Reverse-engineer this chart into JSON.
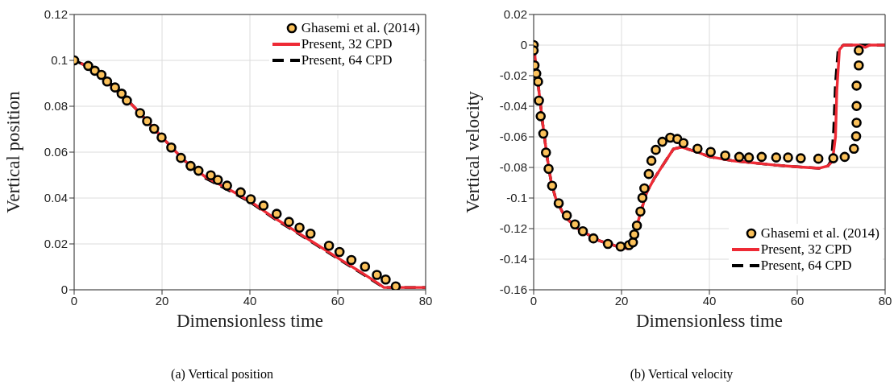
{
  "chart_data": [
    {
      "type": "line",
      "xlabel": "Dimensionless time",
      "ylabel": "Vertical position",
      "annotations": [
        "(a)  Vertical position"
      ],
      "xlim": [
        0,
        80
      ],
      "xticks": [
        0,
        20,
        40,
        60,
        80
      ],
      "ylim": [
        0,
        0.12
      ],
      "yticks": [
        0,
        0.02,
        0.04,
        0.06,
        0.08,
        0.1,
        0.12
      ],
      "grid": true,
      "legend": "top right",
      "series": [
        {
          "name": "Ghasemi et al. (2014)",
          "type": "scatter",
          "marker": "circle",
          "color": "#fbc15a",
          "x": [
            0,
            3.2,
            4.7,
            6.2,
            7.5,
            9.3,
            10.8,
            12.0,
            15.0,
            16.6,
            18.2,
            19.9,
            22.1,
            24.3,
            26.5,
            28.3,
            31.1,
            32.7,
            34.8,
            37.9,
            40.2,
            43.1,
            46.1,
            48.9,
            51.3,
            53.8,
            58.0,
            60.4,
            63.1,
            66.2,
            68.9,
            70.9,
            73.2
          ],
          "values": [
            0.1,
            0.0976,
            0.0955,
            0.0937,
            0.0908,
            0.0882,
            0.0855,
            0.0825,
            0.077,
            0.0735,
            0.0702,
            0.0664,
            0.062,
            0.0575,
            0.054,
            0.0519,
            0.0499,
            0.0479,
            0.0454,
            0.0425,
            0.0395,
            0.0367,
            0.0331,
            0.0296,
            0.0271,
            0.0245,
            0.0192,
            0.0165,
            0.013,
            0.0101,
            0.0065,
            0.0045,
            0.0015
          ]
        },
        {
          "name": "Present, 32 CPD",
          "line_style": "solid",
          "color": "#ee2a35",
          "x": [
            1.5,
            5.4,
            8.4,
            13.5,
            20,
            25,
            28,
            30,
            35,
            40,
            45,
            50,
            55,
            60,
            65,
            69,
            70.5,
            80
          ],
          "values": [
            0.0988,
            0.0948,
            0.089,
            0.08,
            0.0665,
            0.0565,
            0.052,
            0.049,
            0.044,
            0.0387,
            0.032,
            0.026,
            0.02,
            0.0139,
            0.008,
            0.003,
            0.001,
            0.001
          ]
        },
        {
          "name": "Present, 64 CPD",
          "line_style": "dashed",
          "color": "#000000",
          "x": [
            0,
            3,
            6,
            10,
            15,
            20,
            25,
            28,
            30,
            35,
            40,
            45,
            50,
            55,
            60,
            65,
            69,
            70.5,
            80
          ],
          "values": [
            0.1,
            0.0975,
            0.094,
            0.087,
            0.077,
            0.0665,
            0.0565,
            0.0515,
            0.0485,
            0.0435,
            0.0383,
            0.0317,
            0.0257,
            0.0197,
            0.0136,
            0.0077,
            0.0028,
            0.001,
            0.001
          ]
        }
      ]
    },
    {
      "type": "line",
      "xlabel": "Dimensionless time",
      "ylabel": "Vertical velocity",
      "annotations": [
        "(b)  Vertical velocity"
      ],
      "xlim": [
        0,
        80
      ],
      "xticks": [
        0,
        20,
        40,
        60,
        80
      ],
      "ylim": [
        -0.16,
        0.02
      ],
      "yticks": [
        -0.16,
        -0.14,
        -0.12,
        -0.1,
        -0.08,
        -0.06,
        -0.04,
        -0.02,
        0,
        0.02
      ],
      "grid": true,
      "legend": "bottom right",
      "series": [
        {
          "name": "Ghasemi et al. (2014)",
          "type": "scatter",
          "marker": "circle",
          "color": "#fbc15a",
          "x": [
            0,
            0,
            0.2,
            0.6,
            1.0,
            1.2,
            1.6,
            2.2,
            2.8,
            3.4,
            4.2,
            5.7,
            7.55,
            9.4,
            11.2,
            13.6,
            16.9,
            19.8,
            21.7,
            22.6,
            22.9,
            23.5,
            24.3,
            24.75,
            25.2,
            26.2,
            26.8,
            27.8,
            29.3,
            31.1,
            32.7,
            34.1,
            37.3,
            40.3,
            43.6,
            46.8,
            49.0,
            51.9,
            55.2,
            57.9,
            60.8,
            64.8,
            68.2,
            70.8,
            72.9,
            73.4,
            73.5,
            73.5,
            73.5,
            74.0,
            74.0
          ],
          "values": [
            0,
            -0.0035,
            -0.0133,
            -0.0186,
            -0.0239,
            -0.0363,
            -0.0465,
            -0.0579,
            -0.0703,
            -0.0809,
            -0.092,
            -0.1034,
            -0.1114,
            -0.1172,
            -0.1217,
            -0.1264,
            -0.13,
            -0.1317,
            -0.1308,
            -0.129,
            -0.1238,
            -0.118,
            -0.1088,
            -0.0999,
            -0.0937,
            -0.0843,
            -0.0756,
            -0.0685,
            -0.0632,
            -0.0605,
            -0.0614,
            -0.0641,
            -0.0678,
            -0.0699,
            -0.0722,
            -0.0731,
            -0.0735,
            -0.0731,
            -0.0735,
            -0.0735,
            -0.074,
            -0.0743,
            -0.074,
            -0.0731,
            -0.0678,
            -0.0596,
            -0.0508,
            -0.0398,
            -0.0265,
            -0.0133,
            -0.0035
          ]
        },
        {
          "name": "Present, 32 CPD",
          "line_style": "solid",
          "color": "#ee2a35",
          "x": [
            0,
            1,
            2,
            3,
            4,
            5,
            7,
            10,
            15,
            20,
            21.5,
            22.5,
            24,
            25.7,
            27.5,
            29.3,
            31.8,
            33.6,
            37.3,
            40,
            45,
            50,
            55,
            60,
            65,
            67,
            68,
            68.7,
            69,
            69.6,
            70.5,
            74,
            75.5,
            76.5,
            80
          ],
          "values": [
            0,
            -0.025,
            -0.05,
            -0.072,
            -0.09,
            -0.1,
            -0.112,
            -0.12,
            -0.128,
            -0.1325,
            -0.133,
            -0.128,
            -0.113,
            -0.0965,
            -0.087,
            -0.079,
            -0.068,
            -0.0667,
            -0.07,
            -0.073,
            -0.0755,
            -0.077,
            -0.0785,
            -0.0796,
            -0.0805,
            -0.079,
            -0.076,
            -0.06,
            -0.03,
            -0.003,
            0,
            0,
            -0.0015,
            0,
            0
          ]
        },
        {
          "name": "Present, 64 CPD",
          "line_style": "dashed",
          "color": "#000000",
          "x": [
            0,
            1,
            2,
            3,
            4,
            5,
            7,
            10,
            15,
            20,
            21.5,
            22.5,
            24,
            25.7,
            27.5,
            29.3,
            31.8,
            33.6,
            37.3,
            40,
            45,
            50,
            55,
            60,
            65,
            67,
            67.8,
            68.3,
            68.7,
            69.3,
            70.5,
            80
          ],
          "values": [
            0,
            -0.025,
            -0.05,
            -0.072,
            -0.09,
            -0.1,
            -0.112,
            -0.12,
            -0.128,
            -0.1325,
            -0.133,
            -0.128,
            -0.113,
            -0.0965,
            -0.087,
            -0.079,
            -0.068,
            -0.0667,
            -0.07,
            -0.073,
            -0.0755,
            -0.077,
            -0.0785,
            -0.0796,
            -0.0805,
            -0.079,
            -0.075,
            -0.055,
            -0.025,
            -0.003,
            0,
            0
          ]
        }
      ]
    }
  ]
}
